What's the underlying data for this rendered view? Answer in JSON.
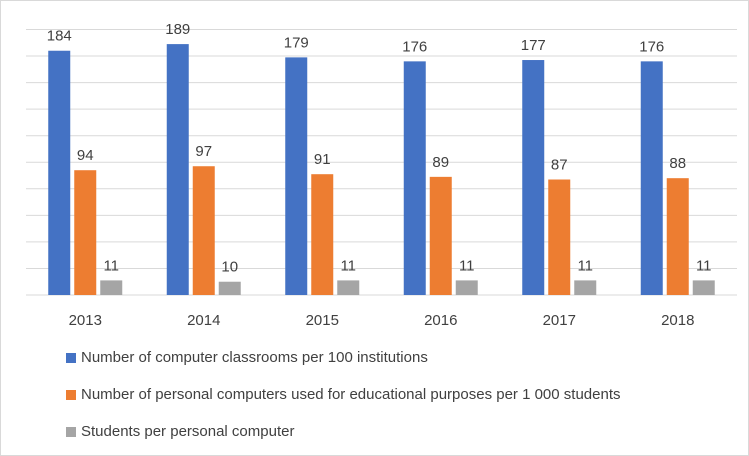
{
  "chart_data": {
    "type": "bar",
    "categories": [
      "2013",
      "2014",
      "2015",
      "2016",
      "2017",
      "2018"
    ],
    "series": [
      {
        "name": "Number of computer classrooms per 100 institutions",
        "color": "#4472c4",
        "values": [
          184,
          189,
          179,
          176,
          177,
          176
        ]
      },
      {
        "name": "Number of personal computers used for educational purposes per 1 000 students",
        "color": "#ed7d31",
        "values": [
          94,
          97,
          91,
          89,
          87,
          88
        ]
      },
      {
        "name": "Students per personal computer",
        "color": "#a5a5a5",
        "values": [
          11,
          10,
          11,
          11,
          11,
          11
        ]
      }
    ],
    "ylim": [
      0,
      200
    ],
    "yticks": [
      0,
      20,
      40,
      60,
      80,
      100,
      120,
      140,
      160,
      180,
      200
    ],
    "grid": true,
    "legend": "bottom"
  }
}
